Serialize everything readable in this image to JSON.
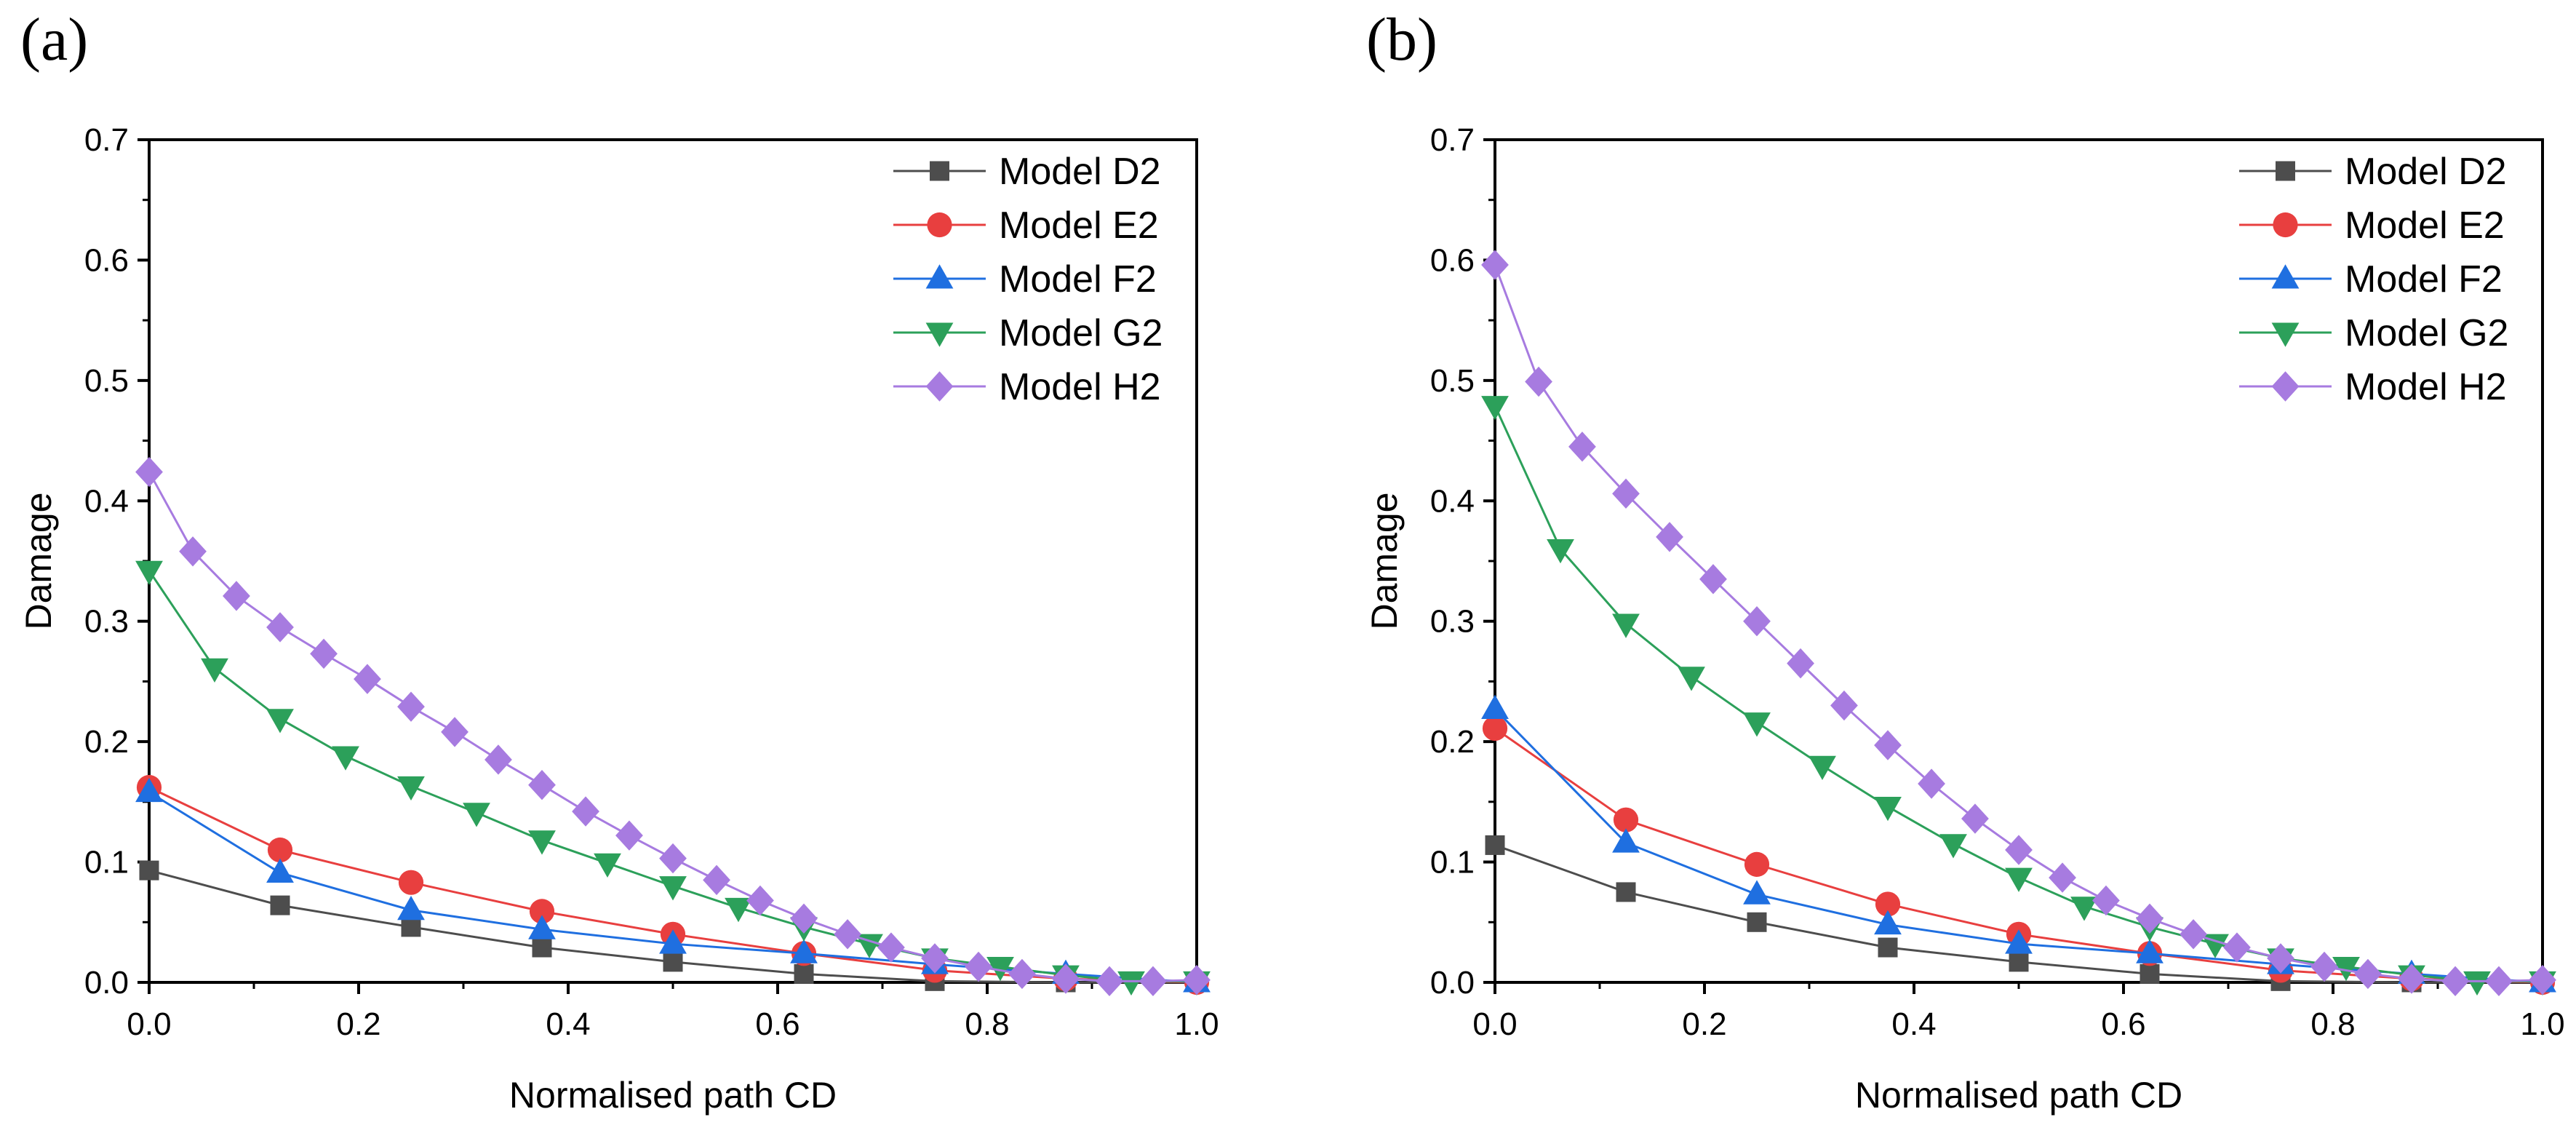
{
  "chart_data": [
    {
      "panel_label": "(a)",
      "type": "line",
      "xlabel": "Normalised path CD",
      "ylabel": "Damage",
      "xlim": [
        0,
        1.0
      ],
      "ylim": [
        0,
        0.7
      ],
      "xticks": [
        0.0,
        0.2,
        0.4,
        0.6,
        0.8,
        1.0
      ],
      "xtick_labels": [
        "0.0",
        "0.2",
        "0.4",
        "0.6",
        "0.8",
        "1.0"
      ],
      "yticks": [
        0.0,
        0.1,
        0.2,
        0.3,
        0.4,
        0.5,
        0.6,
        0.7
      ],
      "ytick_labels": [
        "0.0",
        "0.1",
        "0.2",
        "0.3",
        "0.4",
        "0.5",
        "0.6",
        "0.7"
      ],
      "legend_position": "top-right",
      "series": [
        {
          "name": "Model D2",
          "color": "#4d4d4d",
          "marker": "square",
          "x": [
            0,
            0.125,
            0.25,
            0.375,
            0.5,
            0.625,
            0.75,
            0.875,
            1.0
          ],
          "y": [
            0.093,
            0.064,
            0.046,
            0.029,
            0.017,
            0.007,
            0.001,
            0.0,
            0.0
          ]
        },
        {
          "name": "Model E2",
          "color": "#e83f3f",
          "marker": "circle",
          "x": [
            0,
            0.125,
            0.25,
            0.375,
            0.5,
            0.625,
            0.75,
            0.875,
            1.0
          ],
          "y": [
            0.162,
            0.11,
            0.083,
            0.059,
            0.04,
            0.024,
            0.01,
            0.003,
            0.0
          ]
        },
        {
          "name": "Model F2",
          "color": "#1f6fe0",
          "marker": "triangle-up",
          "x": [
            0,
            0.125,
            0.25,
            0.375,
            0.5,
            0.625,
            0.75,
            0.875,
            1.0
          ],
          "y": [
            0.158,
            0.091,
            0.06,
            0.044,
            0.032,
            0.024,
            0.015,
            0.007,
            0.0
          ]
        },
        {
          "name": "Model G2",
          "color": "#2ca05a",
          "marker": "triangle-down",
          "x": [
            0,
            0.0625,
            0.125,
            0.1875,
            0.25,
            0.3125,
            0.375,
            0.4375,
            0.5,
            0.5625,
            0.625,
            0.6875,
            0.75,
            0.8125,
            0.875,
            0.9375,
            1.0
          ],
          "y": [
            0.342,
            0.261,
            0.219,
            0.188,
            0.163,
            0.141,
            0.118,
            0.099,
            0.08,
            0.062,
            0.046,
            0.032,
            0.02,
            0.013,
            0.006,
            0.001,
            0.001
          ]
        },
        {
          "name": "Model H2",
          "color": "#a77be0",
          "marker": "diamond",
          "x": [
            0,
            0.0417,
            0.0833,
            0.125,
            0.1667,
            0.2083,
            0.25,
            0.2917,
            0.3333,
            0.375,
            0.4167,
            0.4583,
            0.5,
            0.5417,
            0.5833,
            0.625,
            0.6667,
            0.7083,
            0.75,
            0.7917,
            0.8333,
            0.875,
            0.9167,
            0.9583,
            1.0
          ],
          "y": [
            0.424,
            0.358,
            0.321,
            0.295,
            0.273,
            0.252,
            0.229,
            0.208,
            0.185,
            0.164,
            0.142,
            0.122,
            0.103,
            0.085,
            0.068,
            0.053,
            0.04,
            0.029,
            0.02,
            0.013,
            0.007,
            0.003,
            0.001,
            0.001,
            0.002
          ]
        }
      ]
    },
    {
      "panel_label": "(b)",
      "type": "line",
      "xlabel": "Normalised path CD",
      "ylabel": "Damage",
      "xlim": [
        0,
        1.0
      ],
      "ylim": [
        0,
        0.7
      ],
      "xticks": [
        0.0,
        0.2,
        0.4,
        0.6,
        0.8,
        1.0
      ],
      "xtick_labels": [
        "0.0",
        "0.2",
        "0.4",
        "0.6",
        "0.8",
        "1.0"
      ],
      "yticks": [
        0.0,
        0.1,
        0.2,
        0.3,
        0.4,
        0.5,
        0.6,
        0.7
      ],
      "ytick_labels": [
        "0.0",
        "0.1",
        "0.2",
        "0.3",
        "0.4",
        "0.5",
        "0.6",
        "0.7"
      ],
      "legend_position": "top-right",
      "series": [
        {
          "name": "Model D2",
          "color": "#4d4d4d",
          "marker": "square",
          "x": [
            0,
            0.125,
            0.25,
            0.375,
            0.5,
            0.625,
            0.75,
            0.875,
            1.0
          ],
          "y": [
            0.114,
            0.075,
            0.05,
            0.029,
            0.017,
            0.007,
            0.001,
            0.0,
            0.0
          ]
        },
        {
          "name": "Model E2",
          "color": "#e83f3f",
          "marker": "circle",
          "x": [
            0,
            0.125,
            0.25,
            0.375,
            0.5,
            0.625,
            0.75,
            0.875,
            1.0
          ],
          "y": [
            0.211,
            0.135,
            0.098,
            0.065,
            0.04,
            0.024,
            0.01,
            0.003,
            0.0
          ]
        },
        {
          "name": "Model F2",
          "color": "#1f6fe0",
          "marker": "triangle-up",
          "x": [
            0,
            0.125,
            0.25,
            0.375,
            0.5,
            0.625,
            0.75,
            0.875,
            1.0
          ],
          "y": [
            0.227,
            0.116,
            0.073,
            0.048,
            0.032,
            0.024,
            0.015,
            0.007,
            0.0
          ]
        },
        {
          "name": "Model G2",
          "color": "#2ca05a",
          "marker": "triangle-down",
          "x": [
            0,
            0.0625,
            0.125,
            0.1875,
            0.25,
            0.3125,
            0.375,
            0.4375,
            0.5,
            0.5625,
            0.625,
            0.6875,
            0.75,
            0.8125,
            0.875,
            0.9375,
            1.0
          ],
          "y": [
            0.479,
            0.36,
            0.298,
            0.254,
            0.216,
            0.18,
            0.146,
            0.115,
            0.087,
            0.063,
            0.046,
            0.032,
            0.02,
            0.013,
            0.006,
            0.001,
            0.001
          ]
        },
        {
          "name": "Model H2",
          "color": "#a77be0",
          "marker": "diamond",
          "x": [
            0,
            0.0417,
            0.0833,
            0.125,
            0.1667,
            0.2083,
            0.25,
            0.2917,
            0.3333,
            0.375,
            0.4167,
            0.4583,
            0.5,
            0.5417,
            0.5833,
            0.625,
            0.6667,
            0.7083,
            0.75,
            0.7917,
            0.8333,
            0.875,
            0.9167,
            0.9583,
            1.0
          ],
          "y": [
            0.596,
            0.499,
            0.445,
            0.406,
            0.37,
            0.335,
            0.3,
            0.265,
            0.23,
            0.197,
            0.165,
            0.136,
            0.11,
            0.087,
            0.068,
            0.053,
            0.04,
            0.029,
            0.02,
            0.013,
            0.007,
            0.003,
            0.001,
            0.001,
            0.002
          ]
        }
      ]
    }
  ]
}
